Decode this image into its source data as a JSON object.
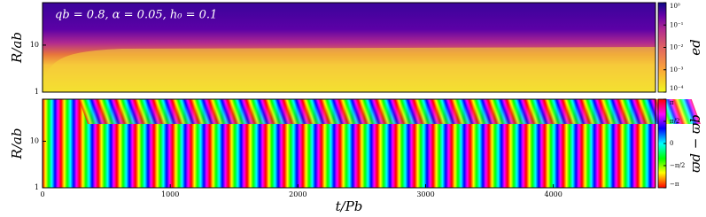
{
  "chart_data": [
    {
      "type": "heatmap",
      "annotation": "qb = 0.8, α = 0.05, h₀ = 0.1",
      "ylabel": "R/ab",
      "ylog": true,
      "ylim": [
        1,
        80
      ],
      "yticks": [
        1,
        10
      ],
      "xlim": [
        0,
        4800
      ],
      "colormap": "plasma",
      "colorbar": {
        "label": "ed",
        "log": true,
        "lim": [
          0.0001,
          1
        ],
        "ticks": [
          {
            "value": 1,
            "label": "10⁰"
          },
          {
            "value": 0.1,
            "label": "10⁻¹"
          },
          {
            "value": 0.01,
            "label": "10⁻²"
          },
          {
            "value": 0.001,
            "label": "10⁻³"
          },
          {
            "value": 0.0001,
            "label": "10⁻⁴"
          }
        ]
      }
    },
    {
      "type": "heatmap",
      "ylabel": "R/ab",
      "xlabel": "t/Pb",
      "ylog": true,
      "ylim": [
        1,
        80
      ],
      "yticks": [
        1,
        10
      ],
      "xlim": [
        0,
        4800
      ],
      "xticks": [
        0,
        1000,
        2000,
        3000,
        4000
      ],
      "colormap": "hsv",
      "colorbar": {
        "label": "ϖd − ϖb",
        "log": false,
        "lim": [
          -3.14159,
          3.14159
        ],
        "ticks": [
          {
            "value": 3.14159,
            "label": "π"
          },
          {
            "value": 1.5708,
            "label": "π/2"
          },
          0,
          {
            "value": -1.5708,
            "label": "−π/2"
          },
          {
            "value": -3.14159,
            "label": "−π"
          }
        ]
      }
    }
  ]
}
